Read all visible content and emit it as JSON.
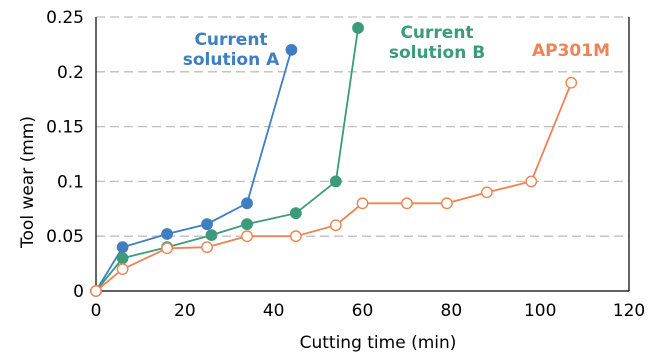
{
  "chart_data": {
    "type": "line",
    "title": "",
    "xlabel": "Cutting time (min)",
    "ylabel": "Tool wear (mm)",
    "xlim": [
      0,
      120
    ],
    "ylim": [
      0,
      0.25
    ],
    "x_ticks": [
      "0",
      "20",
      "40",
      "60",
      "80",
      "100",
      "120"
    ],
    "y_ticks": [
      "0",
      "0.05",
      "0.1",
      "0.15",
      "0.2",
      "0.25"
    ],
    "grid": "horizontal dashed",
    "series": [
      {
        "name_lines": [
          "Current",
          "solution A"
        ],
        "color": "#3f7fc1",
        "marker": "filled-circle",
        "x": [
          0,
          6,
          16,
          25,
          34,
          44
        ],
        "y": [
          0,
          0.04,
          0.052,
          0.061,
          0.08,
          0.22
        ]
      },
      {
        "name_lines": [
          "Current",
          "solution B"
        ],
        "color": "#3b9b7a",
        "marker": "filled-circle",
        "x": [
          0,
          6,
          16,
          26,
          34,
          45,
          54,
          59
        ],
        "y": [
          0,
          0.03,
          0.04,
          0.051,
          0.061,
          0.071,
          0.1,
          0.24
        ]
      },
      {
        "name_lines": [
          "AP301M"
        ],
        "color": "#ef8353",
        "marker": "open-circle",
        "x": [
          0,
          6,
          16,
          25,
          34,
          45,
          54,
          60,
          70,
          79,
          88,
          98,
          107
        ],
        "y": [
          0,
          0.02,
          0.039,
          0.04,
          0.05,
          0.05,
          0.06,
          0.08,
          0.08,
          0.08,
          0.09,
          0.1,
          0.19
        ]
      }
    ]
  }
}
